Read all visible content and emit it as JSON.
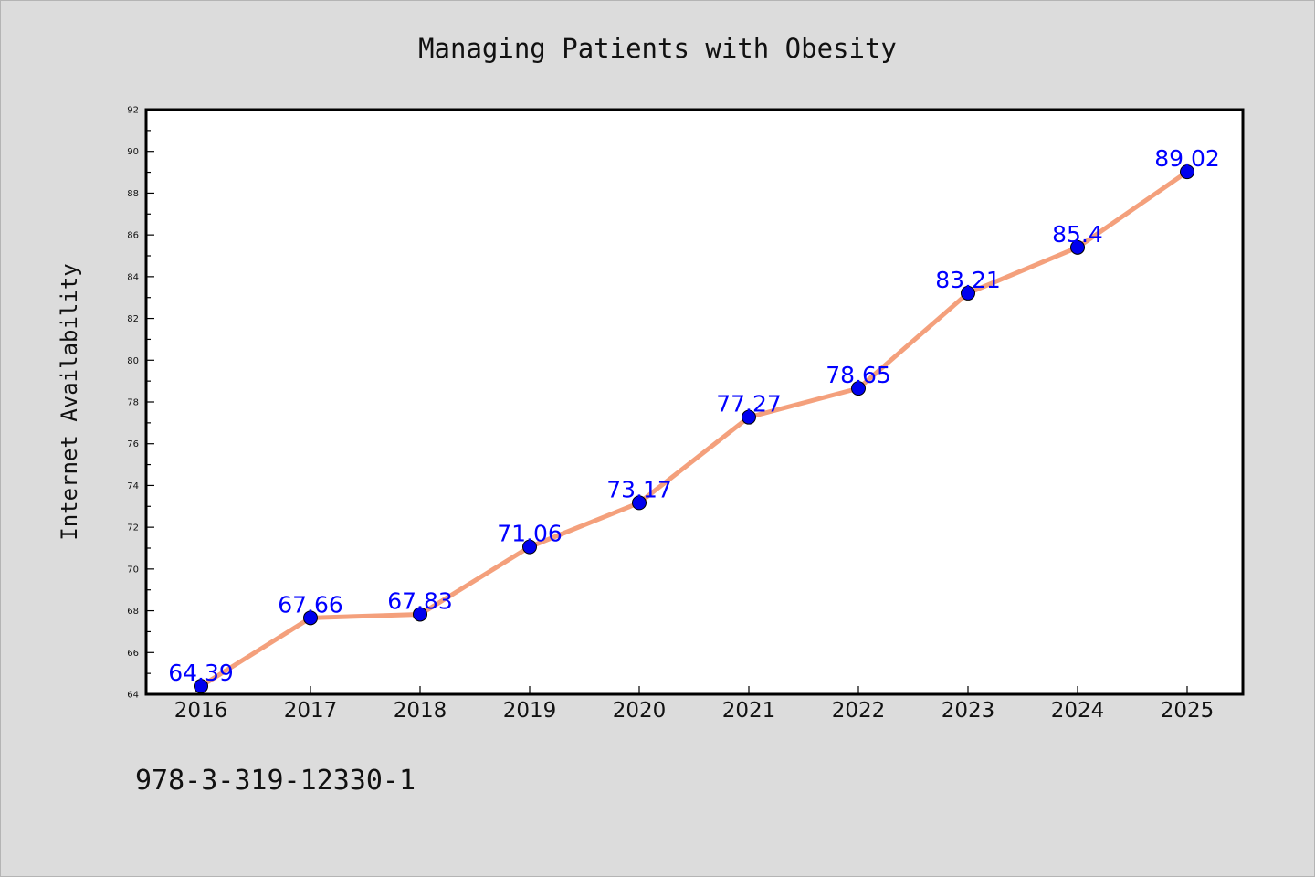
{
  "chart_data": {
    "type": "line",
    "title": "Managing Patients with Obesity",
    "xlabel": "",
    "ylabel": "Internet Availability",
    "categories": [
      "2016",
      "2017",
      "2018",
      "2019",
      "2020",
      "2021",
      "2022",
      "2023",
      "2024",
      "2025"
    ],
    "series": [
      {
        "values": [
          64.39,
          67.66,
          67.83,
          71.06,
          73.17,
          77.27,
          78.65,
          83.21,
          85.4,
          89.02
        ],
        "labels": [
          "64.39",
          "67.66",
          "67.83",
          "71.06",
          "73.17",
          "77.27",
          "78.65",
          "83.21",
          "85.4",
          "89.02"
        ],
        "line_color": "#f4a07c",
        "marker_color": "#0000ee"
      }
    ],
    "ylim": [
      64,
      92
    ],
    "yticks": [
      "64",
      "66",
      "68",
      "70",
      "72",
      "74",
      "76",
      "78",
      "80",
      "82",
      "84",
      "86",
      "88",
      "90",
      "92"
    ],
    "grid": false,
    "data_label_color": "#0000ff"
  },
  "footer": {
    "isbn": "978-3-319-12330-1"
  }
}
